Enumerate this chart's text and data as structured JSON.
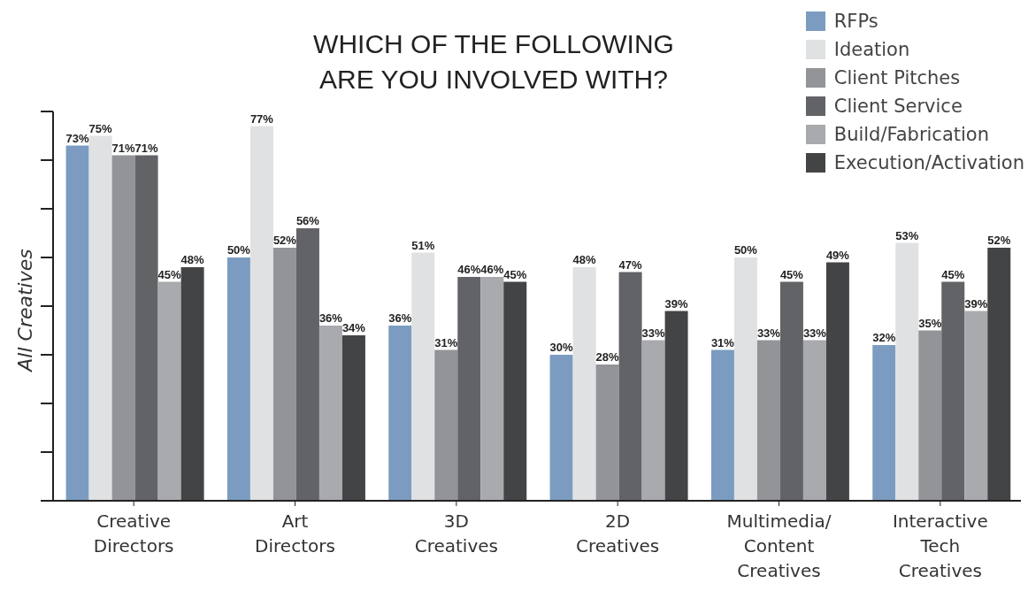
{
  "chart_data": {
    "type": "bar",
    "title": "WHICH OF THE FOLLOWING\nARE YOU INVOLVED WITH?",
    "ylabel": "All Creatives",
    "categories": [
      "Creative Directors",
      "Art Directors",
      "3D Creatives",
      "2D Creatives",
      "Multimedia/ Content Creatives",
      "Interactive Tech Creatives"
    ],
    "series": [
      {
        "name": "RFPs",
        "color": "#7b9cc0",
        "values": [
          73,
          50,
          36,
          30,
          31,
          32
        ],
        "value_labels": [
          "73%",
          "50%",
          "36%",
          "30%",
          "31%",
          "32%"
        ]
      },
      {
        "name": "Ideation",
        "color": "#e0e1e3",
        "values": [
          75,
          77,
          51,
          48,
          50,
          53
        ],
        "value_labels": [
          "75%",
          "77%",
          "51%",
          "48%",
          "50%",
          "53%"
        ]
      },
      {
        "name": "Client Pitches",
        "color": "#929497",
        "values": [
          71,
          52,
          31,
          28,
          33,
          35
        ],
        "value_labels": [
          "71%",
          "52%",
          "31%",
          "28%",
          "33%",
          "35%"
        ]
      },
      {
        "name": "Client Service",
        "color": "#626366",
        "values": [
          71,
          56,
          46,
          47,
          45,
          45
        ],
        "value_labels": [
          "71%",
          "56%",
          "46%",
          "47%",
          "45%",
          "45%"
        ]
      },
      {
        "name": "Build/Fabrication",
        "color": "#a9aaad",
        "values": [
          45,
          36,
          46,
          33,
          33,
          39
        ],
        "value_labels": [
          "45%",
          "36%",
          "46%",
          "33%",
          "33%",
          "39%"
        ]
      },
      {
        "name": "Execution/Activation",
        "color": "#434446",
        "values": [
          48,
          34,
          45,
          39,
          49,
          52
        ],
        "value_labels": [
          "48%",
          "34%",
          "45%",
          "39%",
          "49%",
          "52%"
        ]
      }
    ],
    "ylim": [
      0,
      80
    ],
    "yticks": [
      {
        "value": 0,
        "label": null
      },
      {
        "value": 10,
        "label": null
      },
      {
        "value": 20,
        "label": null
      },
      {
        "value": 30,
        "label": null
      },
      {
        "value": 40,
        "label": null
      },
      {
        "value": 50,
        "label": null
      },
      {
        "value": 60,
        "label": null
      },
      {
        "value": 70,
        "label": null
      },
      {
        "value": 80,
        "label": null
      }
    ],
    "tick_labels": "x",
    "legend": "top right",
    "grid": false
  }
}
